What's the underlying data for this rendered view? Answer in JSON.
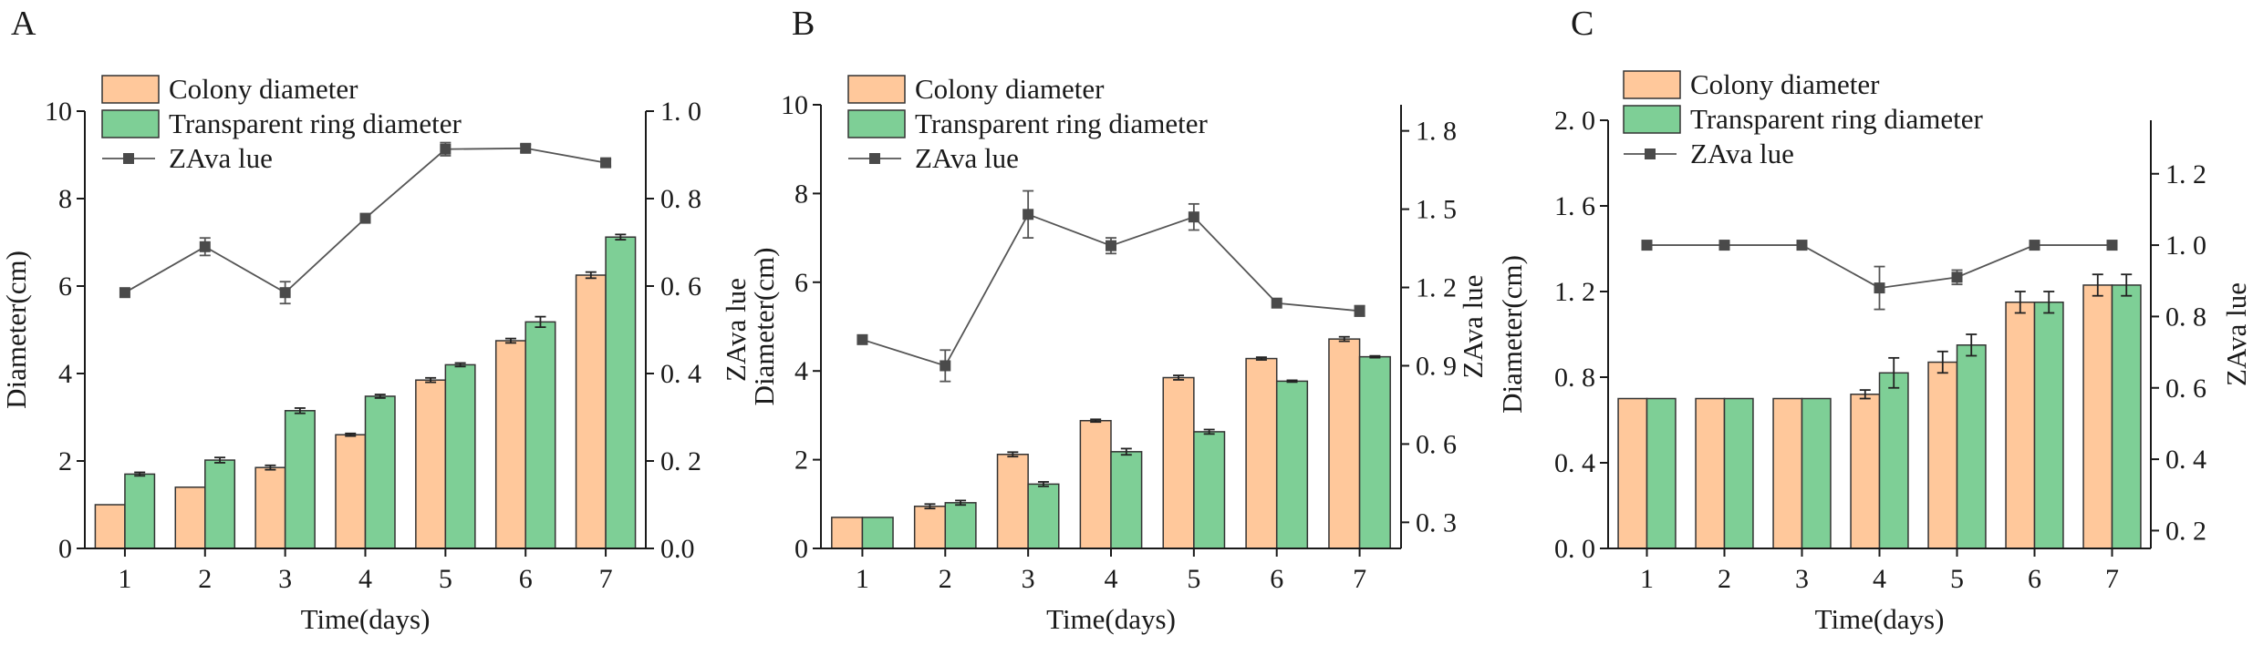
{
  "colors": {
    "colony": "#FFC89B",
    "ring": "#7ECF96",
    "line": "#555555",
    "axis": "#1a1a1a"
  },
  "chart_data": [
    {
      "panel": "A",
      "type": "bar+line",
      "categories": [
        "1",
        "2",
        "3",
        "4",
        "5",
        "6",
        "7"
      ],
      "xlabel": "Time(days)",
      "ylabel": "Diameter(cm)",
      "ylabel_right": "ZAva lue",
      "ylim": [
        0,
        10
      ],
      "yticks": [
        0,
        2,
        4,
        6,
        8,
        10
      ],
      "ytick_labels": [
        "0",
        "2",
        "4",
        "6",
        "8",
        "10"
      ],
      "ylim_right": [
        0,
        1.0
      ],
      "yticks_right": [
        0,
        0.2,
        0.4,
        0.6,
        0.8,
        1.0
      ],
      "ytick_labels_right": [
        "0.0",
        "0. 2",
        "0. 4",
        "0. 6",
        "0. 8",
        "1. 0"
      ],
      "legend": [
        "Colony diameter",
        "Transparent ring diameter",
        "ZAva lue"
      ],
      "series": [
        {
          "name": "Colony diameter",
          "kind": "bar",
          "values": [
            1.0,
            1.4,
            1.85,
            2.6,
            3.85,
            4.75,
            6.25
          ],
          "errors": [
            0,
            0,
            0.05,
            0.03,
            0.05,
            0.05,
            0.07
          ]
        },
        {
          "name": "Transparent ring diameter",
          "kind": "bar",
          "values": [
            1.7,
            2.02,
            3.15,
            3.48,
            4.2,
            5.18,
            7.12
          ],
          "errors": [
            0.04,
            0.06,
            0.06,
            0.04,
            0.04,
            0.12,
            0.06
          ]
        },
        {
          "name": "ZAva lue",
          "kind": "line",
          "axis": "right",
          "values": [
            0.585,
            0.69,
            0.585,
            0.755,
            0.913,
            0.915,
            0.882
          ],
          "errors": [
            0,
            0.02,
            0.025,
            0,
            0.015,
            0.008,
            0.008
          ]
        }
      ]
    },
    {
      "panel": "B",
      "type": "bar+line",
      "categories": [
        "1",
        "2",
        "3",
        "4",
        "5",
        "6",
        "7"
      ],
      "xlabel": "Time(days)",
      "ylabel": "Diameter(cm)",
      "ylabel_right": "ZAva lue",
      "ylim": [
        0,
        10
      ],
      "yticks": [
        0,
        2,
        4,
        6,
        8,
        10
      ],
      "ytick_labels": [
        "0",
        "2",
        "4",
        "6",
        "8",
        "10"
      ],
      "ylim_right": [
        0.2,
        1.9
      ],
      "yticks_right": [
        0.3,
        0.6,
        0.9,
        1.2,
        1.5,
        1.8
      ],
      "ytick_labels_right": [
        "0. 3",
        "0. 6",
        "0. 9",
        "1. 2",
        "1. 5",
        "1. 8"
      ],
      "legend": [
        "Colony diameter",
        "Transparent ring diameter",
        "ZAva lue"
      ],
      "series": [
        {
          "name": "Colony diameter",
          "kind": "bar",
          "values": [
            0.7,
            0.95,
            2.12,
            2.88,
            3.85,
            4.28,
            4.72
          ],
          "errors": [
            0,
            0.05,
            0.05,
            0.03,
            0.05,
            0.03,
            0.05
          ]
        },
        {
          "name": "Transparent ring diameter",
          "kind": "bar",
          "values": [
            0.7,
            1.03,
            1.45,
            2.18,
            2.63,
            3.77,
            4.32
          ],
          "errors": [
            0,
            0.05,
            0.05,
            0.07,
            0.05,
            0.02,
            0.02
          ]
        },
        {
          "name": "ZAva lue",
          "kind": "line",
          "axis": "right",
          "values": [
            1.0,
            0.9,
            1.48,
            1.36,
            1.47,
            1.14,
            1.11
          ],
          "errors": [
            0,
            0.06,
            0.09,
            0.03,
            0.05,
            0,
            0.02
          ]
        }
      ]
    },
    {
      "panel": "C",
      "type": "bar+line",
      "categories": [
        "1",
        "2",
        "3",
        "4",
        "5",
        "6",
        "7"
      ],
      "xlabel": "Time(days)",
      "ylabel": "Diameter(cm)",
      "ylabel_right": "ZAva lue",
      "ylim": [
        0,
        2.0
      ],
      "yticks": [
        0,
        0.4,
        0.8,
        1.2,
        1.6,
        2.0
      ],
      "ytick_labels": [
        "0. 0",
        "0. 4",
        "0. 8",
        "1. 2",
        "1. 6",
        "2. 0"
      ],
      "ylim_right": [
        0.15,
        1.35
      ],
      "yticks_right": [
        0.2,
        0.4,
        0.6,
        0.8,
        1.0,
        1.2
      ],
      "ytick_labels_right": [
        "0. 2",
        "0. 4",
        "0. 6",
        "0. 8",
        "1. 0",
        "1. 2"
      ],
      "legend": [
        "Colony diameter",
        "Transparent ring diameter",
        "ZAva lue"
      ],
      "series": [
        {
          "name": "Colony diameter",
          "kind": "bar",
          "values": [
            0.7,
            0.7,
            0.7,
            0.72,
            0.87,
            1.15,
            1.23
          ],
          "errors": [
            0,
            0,
            0,
            0.02,
            0.05,
            0.05,
            0.05
          ]
        },
        {
          "name": "Transparent ring diameter",
          "kind": "bar",
          "values": [
            0.7,
            0.7,
            0.7,
            0.82,
            0.95,
            1.15,
            1.23
          ],
          "errors": [
            0,
            0,
            0,
            0.07,
            0.05,
            0.05,
            0.05
          ]
        },
        {
          "name": "ZAva lue",
          "kind": "line",
          "axis": "right",
          "values": [
            1.0,
            1.0,
            1.0,
            0.88,
            0.91,
            1.0,
            1.0
          ],
          "errors": [
            0,
            0,
            0,
            0.06,
            0.02,
            0,
            0
          ]
        }
      ]
    }
  ]
}
